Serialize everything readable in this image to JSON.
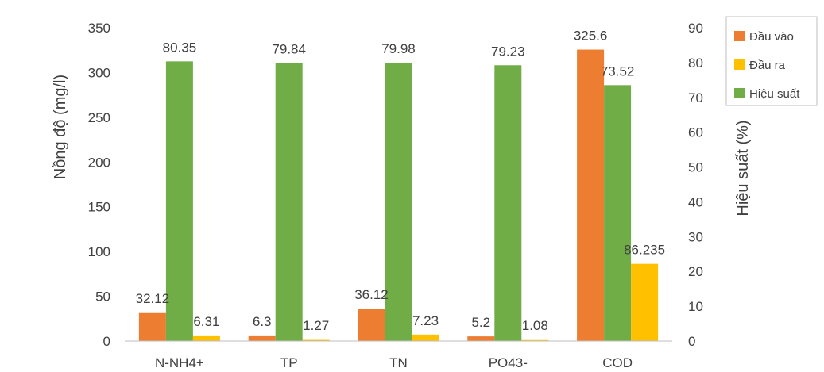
{
  "chart_data": {
    "type": "bar",
    "categories": [
      "N-NH4+",
      "TP",
      "TN",
      "PO43-",
      "COD"
    ],
    "series": [
      {
        "name": "Đầu vào",
        "axis": "left",
        "color": "#ED7D31",
        "values": [
          32.12,
          6.3,
          36.12,
          5.2,
          325.6
        ],
        "labels": [
          "32.12",
          "6.3",
          "36.12",
          "5.2",
          "325.6"
        ]
      },
      {
        "name": "Hiệu suất",
        "axis": "right",
        "color": "#70AD47",
        "values": [
          80.35,
          79.84,
          79.98,
          79.23,
          73.52
        ],
        "labels": [
          "80.35",
          "79.84",
          "79.98",
          "79.23",
          "73.52"
        ]
      },
      {
        "name": "Đầu ra",
        "axis": "left",
        "color": "#FFC000",
        "values": [
          6.31,
          1.27,
          7.23,
          1.08,
          86.235
        ],
        "labels": [
          "6.31",
          "1.27",
          "7.23",
          "1.08",
          "86.235"
        ]
      }
    ],
    "legend_order": [
      "Đầu vào",
      "Đầu ra",
      "Hiệu suất"
    ],
    "ylabel": "Nồng độ (mg/l)",
    "y2label": "Hiệu suất (%)",
    "xlabel": "",
    "title": "",
    "ylim": [
      0,
      350
    ],
    "y_ticks": [
      "0",
      "50",
      "100",
      "150",
      "200",
      "250",
      "300",
      "350"
    ],
    "y2lim": [
      0,
      90
    ],
    "y2_ticks": [
      "0",
      "10",
      "20",
      "30",
      "40",
      "50",
      "60",
      "70",
      "80",
      "90"
    ],
    "grid": false,
    "legend_position": "top-right"
  }
}
